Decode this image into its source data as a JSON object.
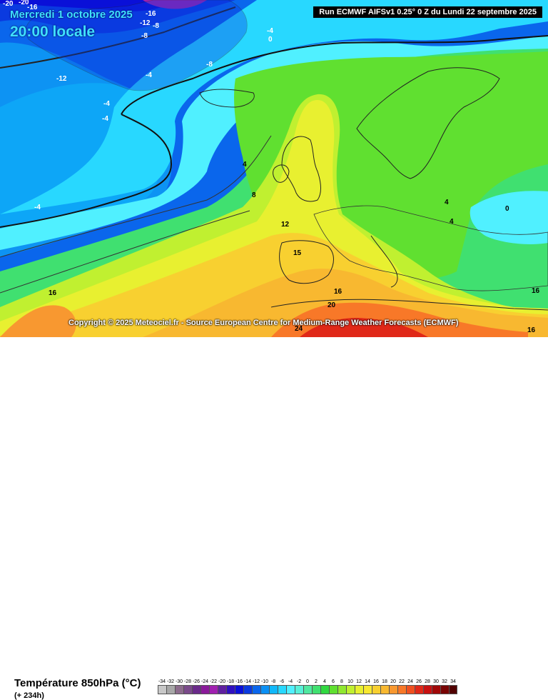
{
  "header": {
    "date": "Mercredi 1 octobre 2025",
    "time": "20:00 locale",
    "run": "Run ECMWF AIFSv1 0.25° 0 Z du Lundi 22 septembre 2025"
  },
  "copyright": "Copyright © 2025 Meteociel.fr - Source European Centre for Medium-Range Weather Forecasts (ECMWF)",
  "footer": {
    "parameter": "Température 850hPa (°C)",
    "lead": "(+ 234h)"
  },
  "legend": {
    "ticks": [
      "-34",
      "-32",
      "-30",
      "-28",
      "-26",
      "-24",
      "-22",
      "-20",
      "-18",
      "-16",
      "-14",
      "-12",
      "-10",
      "-8",
      "-6",
      "-4",
      "-2",
      "0",
      "2",
      "4",
      "6",
      "8",
      "10",
      "12",
      "14",
      "16",
      "18",
      "20",
      "22",
      "24",
      "26",
      "28",
      "30",
      "32",
      "34"
    ],
    "colors": [
      "#c8c8c8",
      "#a8a8a8",
      "#8c6c8c",
      "#7a4a8a",
      "#6a2a8a",
      "#8a1a9a",
      "#a020b0",
      "#6020a0",
      "#3010c0",
      "#0a10d8",
      "#0a3ae0",
      "#0a66ec",
      "#0a90f4",
      "#10b8fa",
      "#28d8ff",
      "#50f0ff",
      "#58f0d8",
      "#50e8a0",
      "#40e070",
      "#30d840",
      "#60e030",
      "#90e830",
      "#c0f030",
      "#e8f030",
      "#f8e830",
      "#f8d030",
      "#f8b830",
      "#f89830",
      "#f87828",
      "#f05020",
      "#e02818",
      "#c81010",
      "#a00808",
      "#780404",
      "#500000"
    ]
  },
  "map_labels": [
    {
      "t": "-20"
    },
    {
      "t": "-20"
    },
    {
      "t": "-16"
    },
    {
      "t": "-16"
    },
    {
      "t": "-12"
    },
    {
      "t": "-8"
    },
    {
      "t": "-8"
    },
    {
      "t": "-4"
    },
    {
      "t": "0"
    },
    {
      "t": "-8"
    },
    {
      "t": "-12"
    },
    {
      "t": "-4"
    },
    {
      "t": "-4"
    },
    {
      "t": "-4"
    },
    {
      "t": "-4"
    },
    {
      "t": "4"
    },
    {
      "t": "8"
    },
    {
      "t": "12"
    },
    {
      "t": "15"
    },
    {
      "t": "16"
    },
    {
      "t": "16"
    },
    {
      "t": "20"
    },
    {
      "t": "24"
    },
    {
      "t": "4"
    },
    {
      "t": "4"
    },
    {
      "t": "0"
    },
    {
      "t": "16"
    },
    {
      "t": "16"
    }
  ]
}
